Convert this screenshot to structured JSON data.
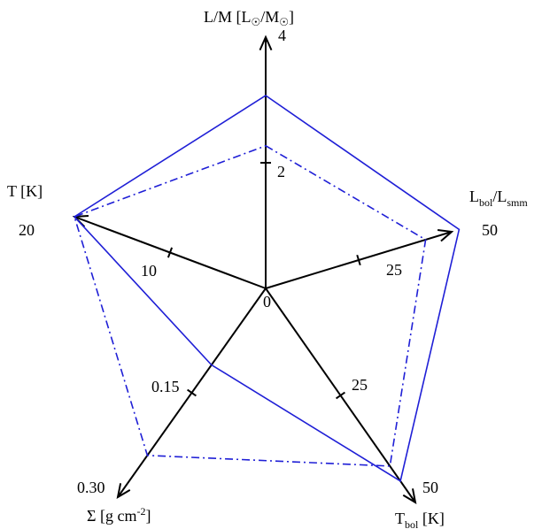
{
  "chart_data": {
    "type": "radar",
    "axes": [
      {
        "key": "lm",
        "label_main": "L/M [L",
        "label_tail": "/M",
        "label_end": "]",
        "suns": true,
        "max": 4,
        "max_label": "4",
        "ticks": [
          {
            "value": 2,
            "label": "2"
          }
        ]
      },
      {
        "key": "lbol",
        "label_main": "L",
        "label_sub1": "bol",
        "label_mid": "/L",
        "label_sub2": "smm",
        "max": 50,
        "max_label": "50",
        "ticks": [
          {
            "value": 25,
            "label": "25"
          }
        ]
      },
      {
        "key": "tbol",
        "label_main": "T",
        "label_sub1": "bol",
        "label_end": " [K]",
        "max": 50,
        "max_label": "50",
        "ticks": [
          {
            "value": 25,
            "label": "25"
          }
        ]
      },
      {
        "key": "sigma",
        "label_main": "Σ [g cm",
        "label_sup": "-2",
        "label_end": "]",
        "max": 0.3,
        "max_label": "0.30",
        "ticks": [
          {
            "value": 0.15,
            "label": "0.15"
          }
        ]
      },
      {
        "key": "temp",
        "label_main": "T [K]",
        "max": 20,
        "max_label": "20",
        "ticks": [
          {
            "value": 10,
            "label": "10"
          }
        ]
      }
    ],
    "origin_label": "0",
    "series": [
      {
        "style": "solid",
        "color": "#1f1fd6",
        "values": [
          3.07,
          52.0,
          45.0,
          0.11,
          20.0
        ]
      },
      {
        "style": "dashdot",
        "color": "#1f1fd6",
        "values": [
          2.27,
          43.0,
          41.5,
          0.24,
          20.0
        ]
      }
    ]
  }
}
